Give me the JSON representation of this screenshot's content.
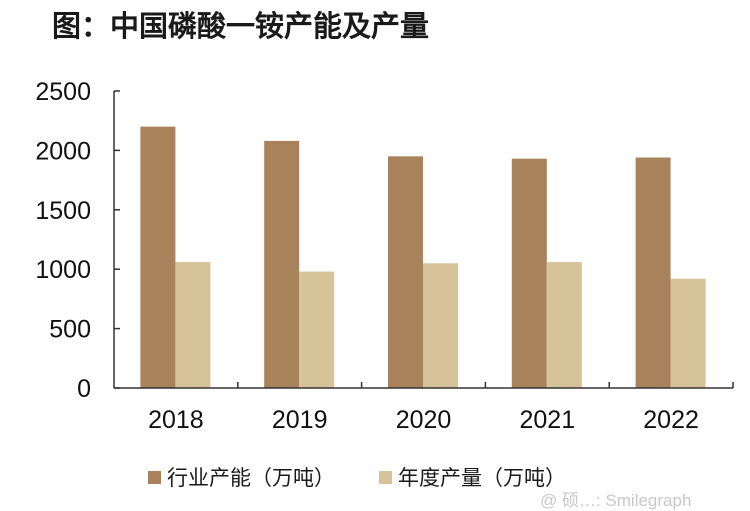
{
  "title": "图：中国磷酸一铵产能及产量",
  "chart_data": {
    "type": "bar",
    "title": "图：中国磷酸一铵产能及产量",
    "xlabel": "",
    "ylabel": "",
    "categories": [
      "2018",
      "2019",
      "2020",
      "2021",
      "2022"
    ],
    "series": [
      {
        "name": "行业产能（万吨）",
        "color": "#A8825A",
        "values": [
          2200,
          2080,
          1950,
          1930,
          1940
        ]
      },
      {
        "name": "年度产量（万吨）",
        "color": "#D6C39A",
        "values": [
          1060,
          980,
          1050,
          1060,
          920
        ]
      }
    ],
    "ylim": [
      0,
      2500
    ],
    "yticks": [
      0,
      500,
      1000,
      1500,
      2000,
      2500
    ],
    "grid": false,
    "legend_position": "bottom"
  },
  "legend": {
    "items": [
      {
        "label": "行业产能（万吨）",
        "color": "#A8825A"
      },
      {
        "label": "年度产量（万吨）",
        "color": "#D6C39A"
      }
    ]
  },
  "watermark": "@ 硕…: Smilegraph"
}
